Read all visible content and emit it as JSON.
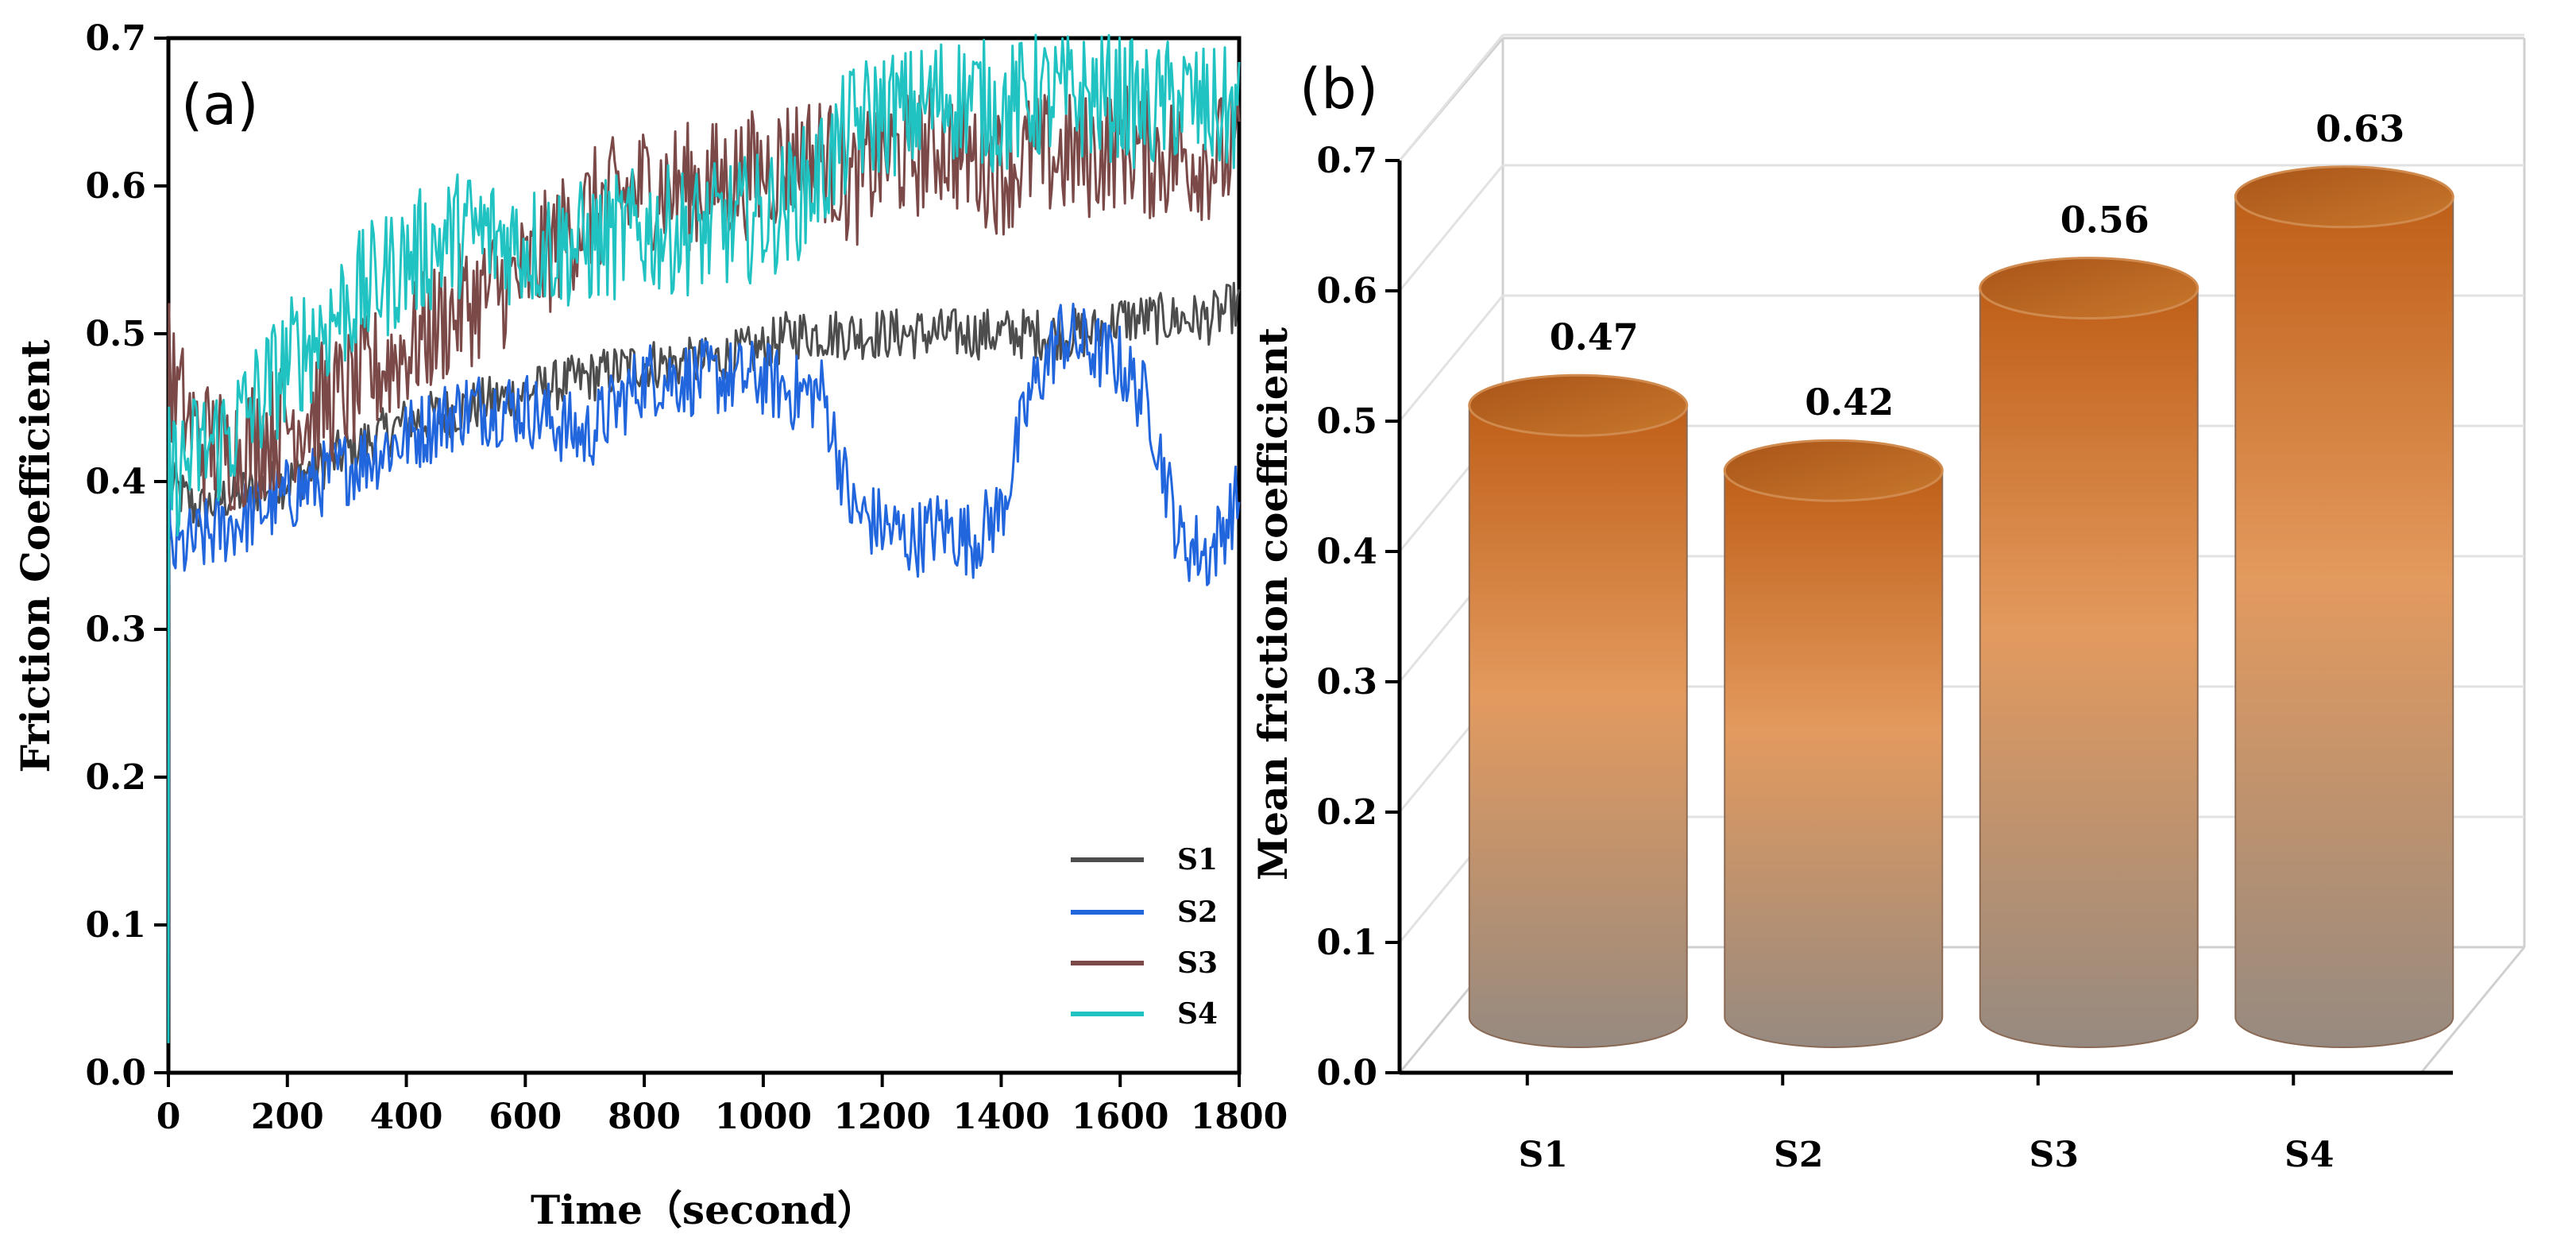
{
  "chart_data": [
    {
      "panel": "(a)",
      "type": "line",
      "xlabel": "Time（second）",
      "ylabel": "Friction Coefficient",
      "xlim": [
        0,
        1800
      ],
      "ylim": [
        0.0,
        0.7
      ],
      "xticks": [
        "0",
        "200",
        "400",
        "600",
        "800",
        "1000",
        "1200",
        "1400",
        "1600",
        "1800"
      ],
      "yticks": [
        "0.0",
        "0.1",
        "0.2",
        "0.3",
        "0.4",
        "0.5",
        "0.6",
        "0.7"
      ],
      "legend_position": "bottom-right",
      "x": [
        0,
        50,
        100,
        200,
        300,
        400,
        500,
        600,
        700,
        800,
        900,
        1000,
        1050,
        1100,
        1150,
        1200,
        1250,
        1300,
        1350,
        1400,
        1450,
        1500,
        1550,
        1600,
        1650,
        1700,
        1750,
        1800
      ],
      "series": [
        {
          "name": "S1",
          "color": "#4d4d4d",
          "noise": 0.008,
          "values": [
            0.4,
            0.38,
            0.39,
            0.4,
            0.42,
            0.44,
            0.45,
            0.46,
            0.47,
            0.48,
            0.48,
            0.49,
            0.5,
            0.5,
            0.5,
            0.5,
            0.5,
            0.5,
            0.5,
            0.5,
            0.5,
            0.5,
            0.5,
            0.51,
            0.51,
            0.51,
            0.51,
            0.52
          ]
        },
        {
          "name": "S2",
          "color": "#2266dd",
          "noise": 0.012,
          "values": [
            0.35,
            0.36,
            0.37,
            0.39,
            0.41,
            0.43,
            0.45,
            0.45,
            0.43,
            0.47,
            0.47,
            0.47,
            0.46,
            0.46,
            0.38,
            0.37,
            0.36,
            0.37,
            0.36,
            0.38,
            0.46,
            0.5,
            0.49,
            0.48,
            0.45,
            0.36,
            0.35,
            0.39
          ]
        },
        {
          "name": "S3",
          "color": "#7b4a48",
          "noise": 0.02,
          "values": [
            0.47,
            0.43,
            0.42,
            0.44,
            0.46,
            0.49,
            0.52,
            0.54,
            0.58,
            0.6,
            0.6,
            0.61,
            0.62,
            0.62,
            0.6,
            0.62,
            0.62,
            0.63,
            0.62,
            0.61,
            0.62,
            0.62,
            0.62,
            0.63,
            0.62,
            0.62,
            0.62,
            0.62
          ]
        },
        {
          "name": "S4",
          "color": "#20c2c2",
          "noise": 0.02,
          "values": [
            0.4,
            0.42,
            0.43,
            0.48,
            0.52,
            0.55,
            0.57,
            0.56,
            0.56,
            0.57,
            0.57,
            0.58,
            0.59,
            0.61,
            0.64,
            0.65,
            0.65,
            0.66,
            0.66,
            0.65,
            0.66,
            0.66,
            0.66,
            0.66,
            0.65,
            0.66,
            0.65,
            0.65
          ]
        }
      ]
    },
    {
      "panel": "(b)",
      "type": "bar",
      "style": "3d-cylinder",
      "ylabel": "Mean friction coefficient",
      "ylim": [
        0.0,
        0.7
      ],
      "yticks": [
        "0.0",
        "0.1",
        "0.2",
        "0.3",
        "0.4",
        "0.5",
        "0.6",
        "0.7"
      ],
      "categories": [
        "S1",
        "S2",
        "S3",
        "S4"
      ],
      "values": [
        0.47,
        0.42,
        0.56,
        0.63
      ],
      "value_labels": [
        "0.47",
        "0.42",
        "0.56",
        "0.63"
      ],
      "colors": {
        "bar_top": "#c0651d",
        "bar_mid": "#e0935a",
        "bar_bottom": "#9a8c80",
        "cap": "#b5661f"
      }
    }
  ]
}
